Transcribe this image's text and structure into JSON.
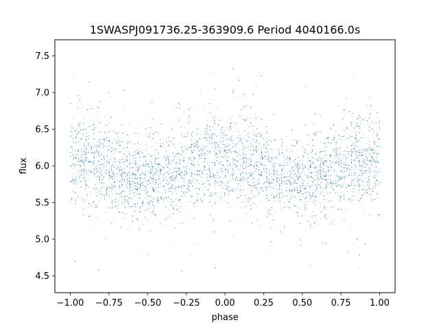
{
  "chart_data": {
    "type": "scatter",
    "title": "1SWASPJ091736.25-363909.6 Period 4040166.0s",
    "xlabel": "phase",
    "ylabel": "flux",
    "xlim": [
      -1.1,
      1.1
    ],
    "ylim": [
      4.27,
      7.72
    ],
    "grid": false,
    "legend": "none",
    "x_ticks": [
      -1.0,
      -0.75,
      -0.5,
      -0.25,
      0.0,
      0.25,
      0.5,
      0.75,
      1.0
    ],
    "x_tick_labels": [
      "−1.00",
      "−0.75",
      "−0.50",
      "−0.25",
      "0.00",
      "0.25",
      "0.50",
      "0.75",
      "1.00"
    ],
    "y_ticks": [
      4.5,
      5.0,
      5.5,
      6.0,
      6.5,
      7.0,
      7.5
    ],
    "y_tick_labels": [
      "4.5",
      "5.0",
      "5.5",
      "6.0",
      "6.5",
      "7.0",
      "7.5"
    ],
    "marker_color": "#1f77b4",
    "series": [
      {
        "x_range": [
          -1.0,
          1.0
        ],
        "approx_points": 24000,
        "profile": [
          {
            "phase": 0.0,
            "mean": 6.05,
            "spread": 0.28
          },
          {
            "phase": 0.1,
            "mean": 6.1,
            "spread": 0.3
          },
          {
            "phase": 0.2,
            "mean": 6.0,
            "spread": 0.3
          },
          {
            "phase": 0.3,
            "mean": 5.9,
            "spread": 0.28
          },
          {
            "phase": 0.4,
            "mean": 5.82,
            "spread": 0.27
          },
          {
            "phase": 0.5,
            "mean": 5.8,
            "spread": 0.27
          },
          {
            "phase": 0.6,
            "mean": 5.85,
            "spread": 0.27
          },
          {
            "phase": 0.7,
            "mean": 5.93,
            "spread": 0.28
          },
          {
            "phase": 0.8,
            "mean": 6.0,
            "spread": 0.3
          },
          {
            "phase": 0.9,
            "mean": 6.1,
            "spread": 0.3
          },
          {
            "phase": 1.0,
            "mean": 6.05,
            "spread": 0.28
          }
        ]
      }
    ]
  }
}
